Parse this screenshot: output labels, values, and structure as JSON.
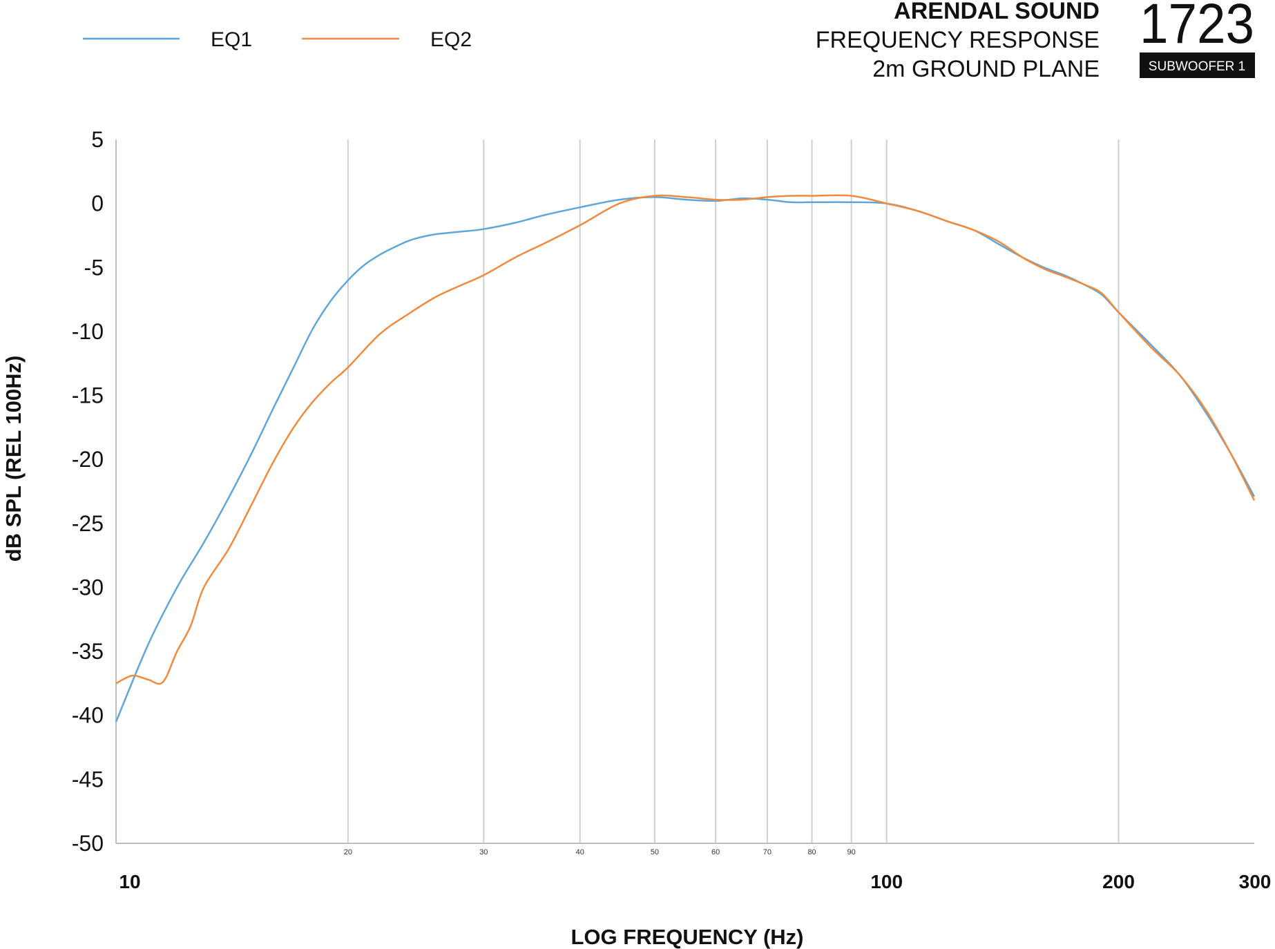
{
  "header": {
    "brand": "ARENDAL SOUND",
    "line2": "FREQUENCY RESPONSE",
    "line3": "2m GROUND PLANE",
    "model": "1723",
    "badge": "SUBWOOFER 1"
  },
  "colors": {
    "EQ1": "#5ea6da",
    "EQ2": "#f08a3c",
    "badge_bg": "#111111"
  },
  "chart_data": {
    "type": "line",
    "xscale": "log",
    "xlim": [
      10,
      300
    ],
    "ylim": [
      -50,
      5
    ],
    "xlabel": "LOG FREQUENCY (Hz)",
    "ylabel": "dB SPL (REL 100Hz)",
    "grid": "vertical",
    "legend_position": "top-left",
    "yticks": [
      5,
      0,
      -5,
      -10,
      -15,
      -20,
      -25,
      -30,
      -35,
      -40,
      -45,
      -50
    ],
    "xticks_major": [
      {
        "value": 10,
        "label": "10"
      },
      {
        "value": 100,
        "label": "100"
      },
      {
        "value": 200,
        "label": "200"
      },
      {
        "value": 300,
        "label": "300"
      }
    ],
    "xticks_minor": [
      {
        "value": 20,
        "label": "20"
      },
      {
        "value": 30,
        "label": "30"
      },
      {
        "value": 40,
        "label": "40"
      },
      {
        "value": 50,
        "label": "50"
      },
      {
        "value": 60,
        "label": "60"
      },
      {
        "value": 70,
        "label": "70"
      },
      {
        "value": 80,
        "label": "80"
      },
      {
        "value": 90,
        "label": "90"
      }
    ],
    "series": [
      {
        "name": "EQ1",
        "x": [
          10,
          11,
          12,
          13,
          14,
          15,
          16,
          17,
          18,
          19,
          20,
          21,
          22,
          23,
          24,
          25,
          26,
          28,
          30,
          33,
          36,
          40,
          45,
          50,
          55,
          60,
          65,
          70,
          75,
          80,
          90,
          100,
          110,
          120,
          130,
          140,
          150,
          160,
          170,
          180,
          190,
          200,
          220,
          240,
          260,
          280,
          300
        ],
        "y": [
          -40.5,
          -34.5,
          -30.0,
          -26.5,
          -23.0,
          -19.5,
          -16.0,
          -12.8,
          -9.8,
          -7.6,
          -6.0,
          -4.8,
          -4.0,
          -3.4,
          -2.9,
          -2.6,
          -2.4,
          -2.2,
          -2.0,
          -1.5,
          -0.9,
          -0.3,
          0.3,
          0.5,
          0.3,
          0.2,
          0.4,
          0.3,
          0.1,
          0.1,
          0.1,
          0.0,
          -0.6,
          -1.4,
          -2.1,
          -3.2,
          -4.2,
          -5.0,
          -5.6,
          -6.3,
          -7.1,
          -8.5,
          -11.0,
          -13.4,
          -16.4,
          -19.6,
          -22.9
        ]
      },
      {
        "name": "EQ2",
        "x": [
          10,
          10.5,
          11,
          11.5,
          12,
          12.5,
          13,
          14,
          15,
          16,
          17,
          18,
          19,
          20,
          22,
          24,
          26,
          28,
          30,
          33,
          36,
          40,
          45,
          50,
          55,
          60,
          65,
          70,
          75,
          80,
          90,
          100,
          110,
          120,
          130,
          140,
          150,
          160,
          170,
          180,
          190,
          200,
          220,
          240,
          260,
          280,
          300
        ],
        "y": [
          -37.5,
          -36.9,
          -37.2,
          -37.4,
          -35.0,
          -33.0,
          -30.0,
          -27.0,
          -23.5,
          -20.2,
          -17.5,
          -15.5,
          -14.0,
          -12.8,
          -10.2,
          -8.6,
          -7.3,
          -6.4,
          -5.6,
          -4.2,
          -3.1,
          -1.7,
          0.0,
          0.6,
          0.5,
          0.3,
          0.3,
          0.5,
          0.6,
          0.6,
          0.6,
          0.0,
          -0.6,
          -1.4,
          -2.1,
          -3.0,
          -4.2,
          -5.1,
          -5.7,
          -6.3,
          -7.0,
          -8.5,
          -11.2,
          -13.4,
          -16.2,
          -19.6,
          -23.2
        ]
      }
    ]
  }
}
